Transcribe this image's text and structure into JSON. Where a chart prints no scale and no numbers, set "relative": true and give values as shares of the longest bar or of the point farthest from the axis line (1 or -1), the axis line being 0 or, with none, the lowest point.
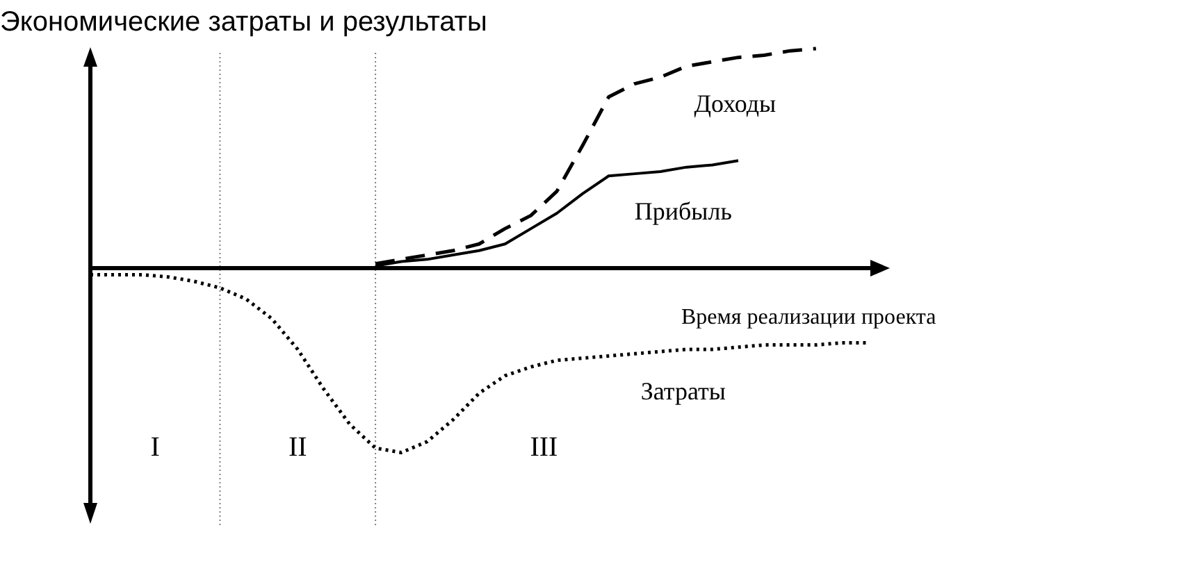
{
  "chart_data": {
    "type": "line",
    "relative": true,
    "ylabel": "Экономические затраты и результаты",
    "xlabel": "Время реализации проекта",
    "categories": [
      null,
      null,
      null,
      null,
      null,
      null,
      null,
      null,
      null,
      null,
      null,
      null,
      null,
      null,
      null,
      null,
      null,
      null,
      null,
      null,
      null,
      null,
      null,
      null,
      null,
      null,
      null,
      null,
      null,
      null,
      null
    ],
    "series": [
      {
        "name": "Доходы",
        "color": "#000000",
        "line_style": "dashed",
        "values": [
          null,
          null,
          null,
          null,
          null,
          null,
          null,
          null,
          null,
          null,
          null,
          0.02,
          0.04,
          0.06,
          0.08,
          0.11,
          0.18,
          0.24,
          0.35,
          0.56,
          0.78,
          0.84,
          0.87,
          0.92,
          0.94,
          0.96,
          0.97,
          0.99,
          1,
          null,
          null
        ]
      },
      {
        "name": "Прибыль",
        "color": "#000000",
        "line_style": "solid",
        "values": [
          null,
          null,
          null,
          null,
          null,
          null,
          null,
          null,
          null,
          null,
          null,
          0.01,
          0.03,
          0.04,
          0.06,
          0.08,
          0.11,
          0.18,
          0.25,
          0.34,
          0.42,
          0.43,
          0.44,
          0.46,
          0.47,
          0.49,
          null,
          null,
          null,
          null,
          null
        ]
      },
      {
        "name": "Затраты",
        "color": "#000000",
        "line_style": "dotted",
        "values": [
          -0.03,
          -0.03,
          -0.03,
          -0.04,
          -0.06,
          -0.09,
          -0.14,
          -0.23,
          -0.37,
          -0.55,
          -0.71,
          -0.82,
          -0.84,
          -0.79,
          -0.69,
          -0.57,
          -0.49,
          -0.45,
          -0.42,
          -0.41,
          -0.4,
          -0.39,
          -0.38,
          -0.37,
          -0.37,
          -0.36,
          -0.35,
          -0.35,
          -0.35,
          -0.34,
          -0.34
        ]
      }
    ],
    "annotations": [
      "I",
      "II",
      "III"
    ]
  }
}
